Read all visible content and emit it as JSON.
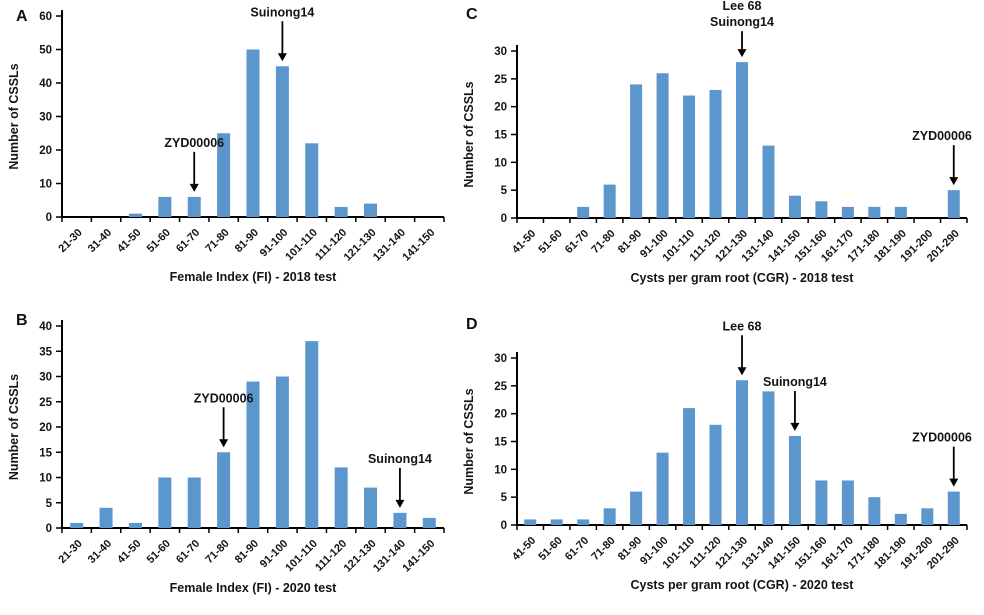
{
  "figure": {
    "bar_color": "#5B96CD",
    "axis_color": "#000000",
    "text_color": "#141414"
  },
  "chart_data": [
    {
      "panel": "A",
      "type": "bar",
      "title": "",
      "ylabel": "Number of CSSLs",
      "xlabel": "Female Index (FI) - 2018 test",
      "ylim": [
        0,
        60
      ],
      "ytick_step": 10,
      "grid": false,
      "categories": [
        "21-30",
        "31-40",
        "41-50",
        "51-60",
        "61-70",
        "71-80",
        "81-90",
        "91-100",
        "101-110",
        "111-120",
        "121-130",
        "131-140",
        "141-150"
      ],
      "values": [
        0,
        0,
        1,
        6,
        6,
        25,
        50,
        45,
        22,
        3,
        4,
        0,
        0
      ],
      "annotations": [
        {
          "lines": [
            "ZYD00006"
          ],
          "category": "61-70"
        },
        {
          "lines": [
            "Suinong14"
          ],
          "category": "91-100"
        }
      ]
    },
    {
      "panel": "B",
      "type": "bar",
      "title": "",
      "ylabel": "Number of CSSLs",
      "xlabel": "Female Index (FI) - 2020 test",
      "ylim": [
        0,
        40
      ],
      "ytick_step": 5,
      "grid": false,
      "categories": [
        "21-30",
        "31-40",
        "41-50",
        "51-60",
        "61-70",
        "71-80",
        "81-90",
        "91-100",
        "101-110",
        "111-120",
        "121-130",
        "131-140",
        "141-150"
      ],
      "values": [
        1,
        4,
        1,
        10,
        10,
        15,
        29,
        30,
        37,
        12,
        8,
        3,
        2
      ],
      "annotations": [
        {
          "lines": [
            "ZYD00006"
          ],
          "category": "71-80"
        },
        {
          "lines": [
            "Suinong14"
          ],
          "category": "131-140"
        }
      ]
    },
    {
      "panel": "C",
      "type": "bar",
      "title": "",
      "ylabel": "Number of CSSLs",
      "xlabel": "Cysts  per gram root (CGR)  - 2018 test",
      "ylim": [
        0,
        30
      ],
      "ytick_step": 5,
      "grid": false,
      "categories": [
        "41-50",
        "51-60",
        "61-70",
        "71-80",
        "81-90",
        "91-100",
        "101-110",
        "111-120",
        "121-130",
        "131-140",
        "141-150",
        "151-160",
        "161-170",
        "171-180",
        "181-190",
        "191-200",
        "201-290"
      ],
      "values": [
        0,
        0,
        2,
        6,
        24,
        26,
        22,
        23,
        28,
        13,
        4,
        3,
        2,
        2,
        2,
        0,
        5
      ],
      "annotations": [
        {
          "lines": [
            "Lee 68",
            "Suinong14"
          ],
          "category": "121-130"
        },
        {
          "lines": [
            "ZYD00006"
          ],
          "category": "201-290"
        }
      ]
    },
    {
      "panel": "D",
      "type": "bar",
      "title": "",
      "ylabel": "Number of CSSLs",
      "xlabel": "Cysts  per gram root (CGR)  - 2020 test",
      "ylim": [
        0,
        30
      ],
      "ytick_step": 5,
      "grid": false,
      "categories": [
        "41-50",
        "51-60",
        "61-70",
        "71-80",
        "81-90",
        "91-100",
        "101-110",
        "111-120",
        "121-130",
        "131-140",
        "141-150",
        "151-160",
        "161-170",
        "171-180",
        "181-190",
        "191-200",
        "201-290"
      ],
      "values": [
        1,
        1,
        1,
        3,
        6,
        13,
        21,
        18,
        26,
        24,
        16,
        8,
        8,
        5,
        2,
        3,
        6
      ],
      "annotations": [
        {
          "lines": [
            "Lee 68"
          ],
          "category": "121-130"
        },
        {
          "lines": [
            "Suinong14"
          ],
          "category": "141-150"
        },
        {
          "lines": [
            "ZYD00006"
          ],
          "category": "201-290"
        }
      ]
    }
  ]
}
